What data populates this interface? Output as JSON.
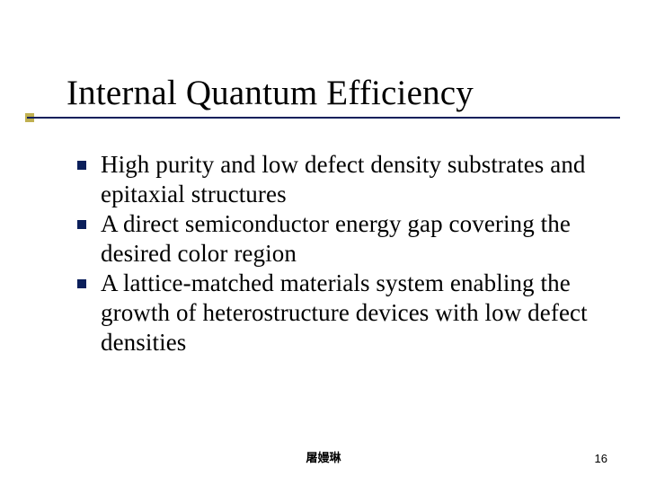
{
  "slide": {
    "title": "Internal Quantum Efficiency",
    "title_fontsize": 39,
    "title_color": "#000000",
    "rule_color": "#0b1f5b",
    "nub_color": "#c0b050",
    "bullet_color": "#0b1f5b",
    "body_fontsize": 27,
    "body_color": "#000000",
    "background_color": "#ffffff",
    "bullets": [
      "High purity and low defect density substrates and epitaxial structures",
      "A direct semiconductor energy gap covering the desired color region",
      "A lattice-matched materials system enabling the growth of heterostructure devices with low defect densities"
    ],
    "footer_center": "屠嫚琳",
    "page_number": "16"
  }
}
